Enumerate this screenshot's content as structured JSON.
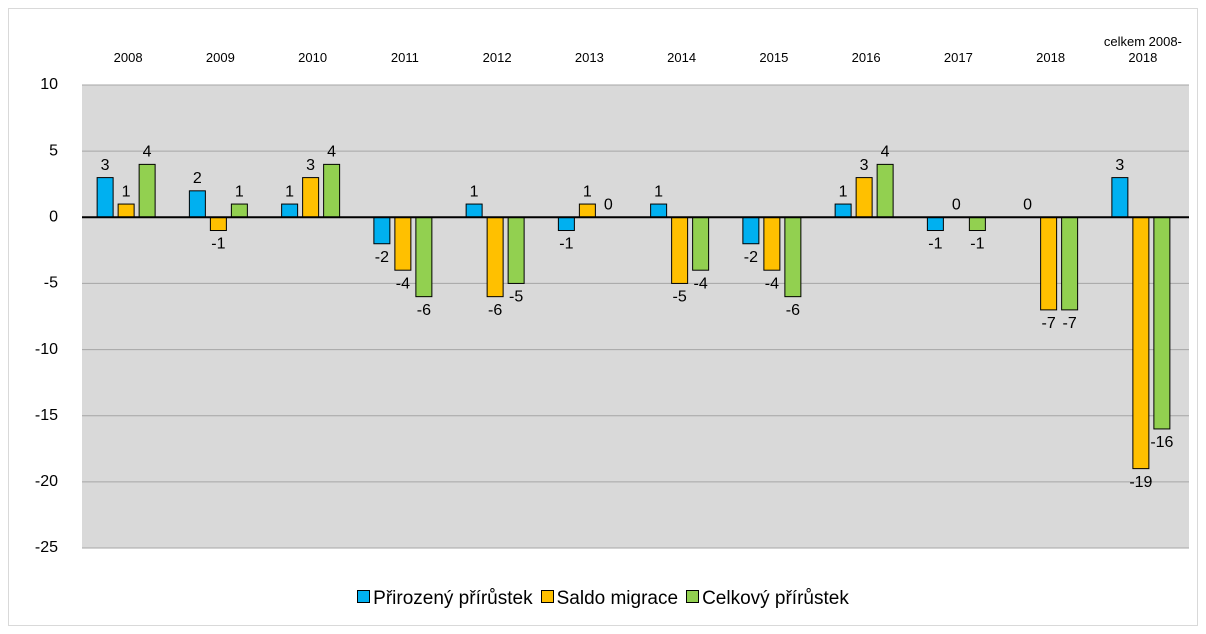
{
  "chart_data": {
    "type": "bar",
    "categories": [
      "2008",
      "2009",
      "2010",
      "2011",
      "2012",
      "2013",
      "2014",
      "2015",
      "2016",
      "2017",
      "2018",
      "celkem 2008-2018"
    ],
    "series": [
      {
        "name": "Přirozený přírůstek",
        "color": "#00b0f0",
        "values": [
          3,
          2,
          1,
          -2,
          1,
          -1,
          1,
          -2,
          1,
          -1,
          0,
          3
        ]
      },
      {
        "name": "Saldo migrace",
        "color": "#ffc000",
        "values": [
          1,
          -1,
          3,
          -4,
          -6,
          1,
          -5,
          -4,
          3,
          0,
          -7,
          -19
        ]
      },
      {
        "name": "Celkový přírůstek",
        "color": "#92d050",
        "values": [
          4,
          1,
          4,
          -6,
          -5,
          0,
          -4,
          -6,
          4,
          -1,
          -7,
          -16
        ]
      }
    ],
    "ylim": [
      -25,
      10
    ],
    "yticks": [
      -25,
      -20,
      -15,
      -10,
      -5,
      0,
      5,
      10
    ],
    "grid": true,
    "legend": "bottom"
  }
}
